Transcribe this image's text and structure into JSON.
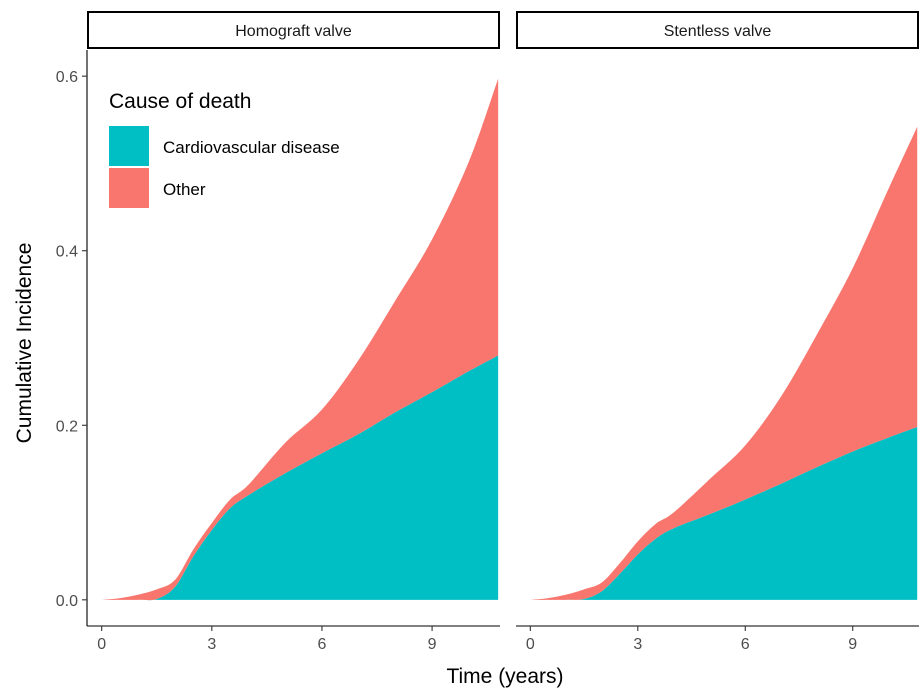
{
  "chart_data": {
    "type": "area",
    "stacked": true,
    "xlabel": "Time (years)",
    "ylabel": "Cumulative Incidence",
    "xlim": [
      -0.4,
      10.85
    ],
    "ylim": [
      -0.03,
      0.63
    ],
    "xticks": [
      0,
      3,
      6,
      9
    ],
    "yticks": [
      0.0,
      0.2,
      0.4,
      0.6
    ],
    "ytick_labels": [
      "0.0",
      "0.2",
      "0.4",
      "0.6"
    ],
    "legend": {
      "title": "Cause of death",
      "position": "top-left",
      "entries": [
        {
          "label": "Cardiovascular disease",
          "color": "#00BFC4"
        },
        {
          "label": "Other",
          "color": "#F8766D"
        }
      ]
    },
    "panels": [
      {
        "title": "Homograft valve",
        "x": [
          0,
          0.5,
          1,
          1.5,
          2,
          2.5,
          3,
          3.5,
          4,
          5,
          6,
          7,
          8,
          9,
          10,
          10.8
        ],
        "series": [
          {
            "name": "Cardiovascular disease",
            "values": [
              0,
              0,
              0,
              0.001,
              0.015,
              0.05,
              0.08,
              0.105,
              0.12,
              0.145,
              0.168,
              0.19,
              0.215,
              0.238,
              0.262,
              0.28
            ]
          },
          {
            "name": "Other",
            "values": [
              0,
              0.002,
              0.006,
              0.011,
              0.008,
              0.008,
              0.008,
              0.01,
              0.012,
              0.035,
              0.05,
              0.085,
              0.128,
              0.175,
              0.24,
              0.317
            ]
          }
        ]
      },
      {
        "title": "Stentless valve",
        "x": [
          0,
          0.5,
          1,
          1.5,
          2,
          2.5,
          3,
          3.5,
          4,
          5,
          6,
          7,
          8,
          9,
          10,
          10.8
        ],
        "series": [
          {
            "name": "Cardiovascular disease",
            "values": [
              0,
              0,
              0,
              0.001,
              0.01,
              0.03,
              0.052,
              0.07,
              0.082,
              0.098,
              0.115,
              0.133,
              0.152,
              0.17,
              0.186,
              0.198
            ]
          },
          {
            "name": "Other",
            "values": [
              0,
              0.002,
              0.006,
              0.011,
              0.01,
              0.012,
              0.015,
              0.017,
              0.018,
              0.04,
              0.062,
              0.1,
              0.152,
              0.21,
              0.285,
              0.344
            ]
          }
        ]
      }
    ]
  }
}
